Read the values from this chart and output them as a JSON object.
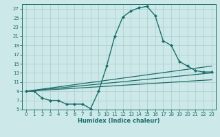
{
  "xlabel": "Humidex (Indice chaleur)",
  "ylabel": "",
  "bg_color": "#cce8e8",
  "grid_color": "#aacccc",
  "line_color": "#1a6e6a",
  "xlim": [
    -0.5,
    23.5
  ],
  "ylim": [
    5,
    28
  ],
  "xticks": [
    0,
    1,
    2,
    3,
    4,
    5,
    6,
    7,
    8,
    9,
    10,
    11,
    12,
    13,
    14,
    15,
    16,
    17,
    18,
    19,
    20,
    21,
    22,
    23
  ],
  "yticks": [
    5,
    7,
    9,
    11,
    13,
    15,
    17,
    19,
    21,
    23,
    25,
    27
  ],
  "series": [
    {
      "x": [
        0,
        1,
        2,
        3,
        4,
        5,
        6,
        7,
        8,
        9,
        10,
        11,
        12,
        13,
        14,
        15,
        16,
        17,
        18,
        19,
        20,
        21,
        22,
        23
      ],
      "y": [
        9,
        9,
        7.5,
        7,
        7,
        6.2,
        6.2,
        6.2,
        5.2,
        9,
        14.5,
        21,
        25.2,
        26.5,
        27.2,
        27.5,
        25.5,
        20,
        19,
        15.5,
        14.5,
        13.5,
        13.2,
        13.2
      ],
      "marker": "D",
      "markersize": 2.0,
      "linewidth": 1.0,
      "has_marker": true
    },
    {
      "x": [
        0,
        23
      ],
      "y": [
        9,
        14.5
      ],
      "marker": null,
      "markersize": 0,
      "linewidth": 0.9,
      "has_marker": false
    },
    {
      "x": [
        0,
        23
      ],
      "y": [
        9,
        13.0
      ],
      "marker": null,
      "markersize": 0,
      "linewidth": 0.9,
      "has_marker": false
    },
    {
      "x": [
        0,
        23
      ],
      "y": [
        9,
        11.5
      ],
      "marker": null,
      "markersize": 0,
      "linewidth": 0.9,
      "has_marker": false
    }
  ],
  "tick_fontsize": 5,
  "xlabel_fontsize": 6,
  "xlabel_fontweight": "bold"
}
